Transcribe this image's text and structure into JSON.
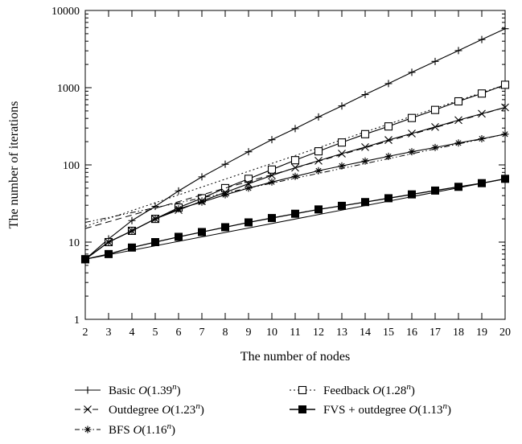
{
  "chart_data": {
    "type": "line",
    "title": "",
    "xlabel": "The number of nodes",
    "ylabel": "The number of iterations",
    "y_scale": "log",
    "xlim": [
      2,
      20
    ],
    "ylim": [
      1,
      10000
    ],
    "x_ticks": [
      "2",
      "3",
      "4",
      "5",
      "6",
      "7",
      "8",
      "9",
      "10",
      "11",
      "12",
      "13",
      "14",
      "15",
      "16",
      "17",
      "18",
      "19",
      "20"
    ],
    "y_ticks": [
      "1",
      "10",
      "100",
      "1000",
      "10000"
    ],
    "grid": false,
    "legend_position": "bottom",
    "x": [
      2,
      3,
      4,
      5,
      6,
      7,
      8,
      9,
      10,
      11,
      12,
      13,
      14,
      15,
      16,
      17,
      18,
      19,
      20
    ],
    "series": [
      {
        "name": "Basic",
        "complexity": "O(1.39^n)",
        "legend_prefix": "Basic ",
        "legend_base": "O(1.39",
        "legend_close": ")",
        "marker": "plus",
        "values": [
          6,
          11,
          19,
          29,
          46,
          70,
          102,
          148,
          212,
          295,
          418,
          580,
          815,
          1130,
          1580,
          2190,
          3020,
          4200,
          5800
        ],
        "fit": null
      },
      {
        "name": "Feedback",
        "complexity": "O(1.28^n)",
        "legend_prefix": "Feedback ",
        "legend_base": "O(1.28",
        "legend_close": ")",
        "marker": "open-square",
        "values": [
          6,
          10,
          14,
          20,
          28,
          37,
          50,
          66,
          87,
          115,
          150,
          195,
          250,
          315,
          405,
          515,
          665,
          840,
          1090
        ],
        "fit": [
          16,
          1090
        ]
      },
      {
        "name": "Outdegree",
        "complexity": "O(1.23^n)",
        "legend_prefix": "Outdegree ",
        "legend_base": "O(1.23",
        "legend_close": ")",
        "marker": "x",
        "values": [
          6,
          10,
          14,
          20,
          26,
          34,
          44,
          57,
          73,
          92,
          113,
          140,
          170,
          210,
          255,
          310,
          380,
          460,
          555
        ],
        "fit": [
          15,
          555
        ]
      },
      {
        "name": "BFS",
        "complexity": "O(1.16^n)",
        "legend_prefix": "BFS ",
        "legend_base": "O(1.16",
        "legend_close": ")",
        "marker": "asterisk",
        "values": [
          6,
          10,
          14,
          20,
          27,
          33,
          41,
          50,
          60,
          71,
          84,
          97,
          112,
          129,
          148,
          168,
          192,
          218,
          250
        ],
        "fit": [
          18,
          250
        ]
      },
      {
        "name": "FVS + outdegree",
        "complexity": "O(1.13^n)",
        "legend_prefix": "FVS + outdegree ",
        "legend_base": "O(1.13",
        "legend_close": ")",
        "marker": "filled-square",
        "values": [
          6,
          7,
          8.5,
          10,
          11.7,
          13.5,
          15.6,
          18,
          20.5,
          23.3,
          26.5,
          29.5,
          33,
          37,
          41.5,
          46.5,
          52,
          58,
          66
        ],
        "fit": [
          6,
          66
        ]
      }
    ]
  }
}
